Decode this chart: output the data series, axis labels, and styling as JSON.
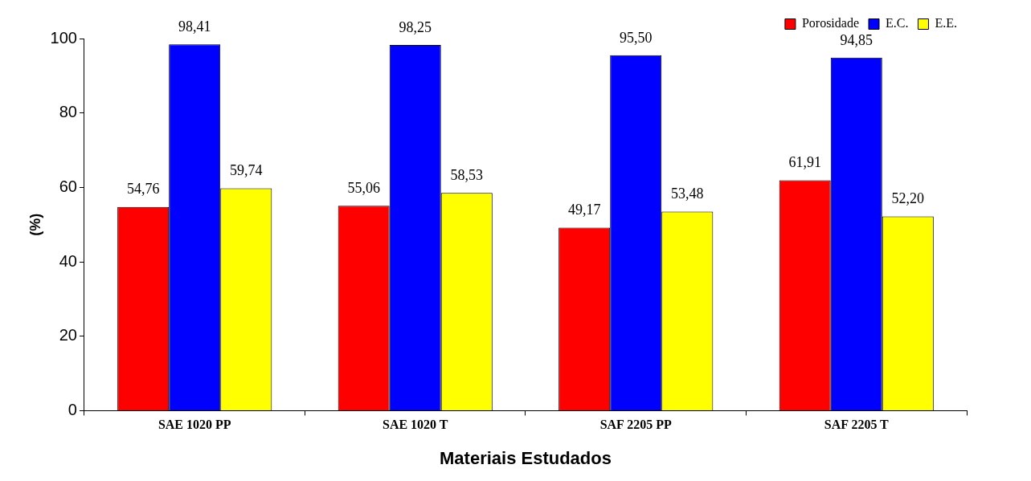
{
  "chart_data": {
    "type": "bar",
    "xlabel": "Materiais Estudados",
    "ylabel": "(%)",
    "categories": [
      "SAE 1020 PP",
      "SAE 1020 T",
      "SAF 2205 PP",
      "SAF 2205 T"
    ],
    "series": [
      {
        "name": "Porosidade",
        "color": "#ff0000",
        "values": [
          54.76,
          55.06,
          49.17,
          61.91
        ],
        "value_labels": [
          "54,76",
          "55,06",
          "49,17",
          "61,91"
        ]
      },
      {
        "name": "E.C.",
        "color": "#0000ff",
        "values": [
          98.41,
          98.25,
          95.5,
          94.85
        ],
        "value_labels": [
          "98,41",
          "98,25",
          "95,50",
          "94,85"
        ]
      },
      {
        "name": "E.E.",
        "color": "#ffff00",
        "values": [
          59.74,
          58.53,
          53.48,
          52.2
        ],
        "value_labels": [
          "59,74",
          "58,53",
          "53,48",
          "52,20"
        ]
      }
    ],
    "ylim": [
      0,
      100
    ],
    "yticks": [
      0,
      20,
      40,
      60,
      80,
      100
    ],
    "grid": false,
    "legend": "top right"
  }
}
